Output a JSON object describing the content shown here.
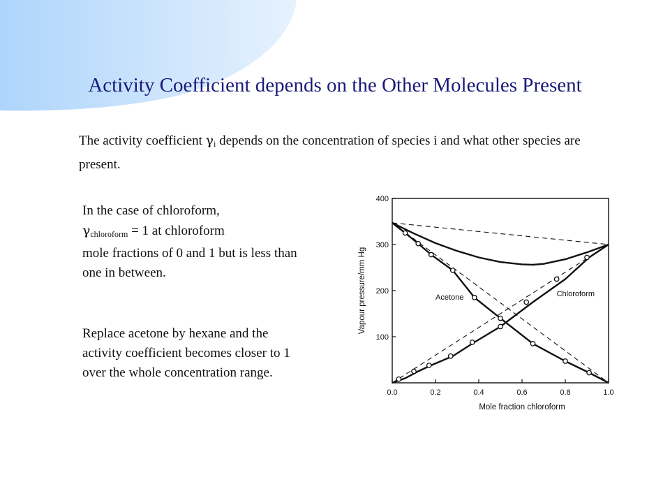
{
  "slide": {
    "title": "Activity Coefficient depends on the Other Molecules Present",
    "intro": {
      "before": "The activity coefficient ",
      "symbol": "γ",
      "subscript": "i",
      "after": " depends on the concentration of species i and what other species are present."
    },
    "para1": {
      "line1": "In the case of chloroform,",
      "symbol": "γ",
      "subscript": "chloroform",
      "after": " = 1 at chloroform",
      "rest": "mole fractions of 0 and 1 but is less than one in between."
    },
    "para2": "Replace acetone by hexane and the activity coefficient becomes closer to 1 over the whole concentration range."
  },
  "chart_data": {
    "type": "line",
    "xlabel": "Mole fraction chloroform",
    "ylabel": "Vapour pressure/mm Hg",
    "xlim": [
      0,
      1
    ],
    "ylim": [
      0,
      400
    ],
    "xticks": [
      "0.0",
      "0.2",
      "0.4",
      "0.6",
      "0.8",
      "1.0"
    ],
    "yticks": [
      "100",
      "200",
      "300",
      "400"
    ],
    "curve_labels": {
      "acetone": "Acetone",
      "chloroform": "Chloroform"
    },
    "series": [
      {
        "key": "total",
        "style": "solid",
        "x": [
          0,
          0.1,
          0.2,
          0.3,
          0.4,
          0.5,
          0.6,
          0.65,
          0.7,
          0.8,
          0.9,
          1.0
        ],
        "values": [
          347,
          324,
          303,
          286,
          272,
          262,
          257,
          256,
          258,
          268,
          283,
          300
        ]
      },
      {
        "key": "acetone",
        "style": "solid",
        "x": [
          0,
          0.06,
          0.12,
          0.18,
          0.28,
          0.38,
          0.5,
          0.65,
          0.8,
          0.91,
          1.0
        ],
        "values": [
          347,
          325,
          302,
          278,
          244,
          185,
          140,
          85,
          47,
          22,
          0
        ]
      },
      {
        "key": "chloroform",
        "style": "solid",
        "x": [
          0,
          0.06,
          0.12,
          0.18,
          0.28,
          0.38,
          0.5,
          0.65,
          0.8,
          0.91,
          1.0
        ],
        "values": [
          0,
          10,
          25,
          38,
          58,
          88,
          122,
          175,
          225,
          272,
          300
        ]
      },
      {
        "key": "raoult-total",
        "style": "dashed",
        "x": [
          0,
          1
        ],
        "values": [
          347,
          300
        ]
      },
      {
        "key": "raoult-acetone",
        "style": "dashed",
        "x": [
          0,
          1
        ],
        "values": [
          347,
          0
        ]
      },
      {
        "key": "raoult-chloroform",
        "style": "dashed",
        "x": [
          0,
          1
        ],
        "values": [
          0,
          300
        ]
      }
    ],
    "markers": {
      "acetone": {
        "x": [
          0.06,
          0.12,
          0.18,
          0.28,
          0.38,
          0.5,
          0.65,
          0.8,
          0.91
        ],
        "values": [
          325,
          302,
          278,
          244,
          185,
          140,
          85,
          47,
          22
        ]
      },
      "chloroform": {
        "x": [
          0.03,
          0.1,
          0.17,
          0.27,
          0.37,
          0.5,
          0.62,
          0.76,
          0.9
        ],
        "values": [
          8,
          25,
          38,
          58,
          88,
          122,
          175,
          225,
          272
        ]
      }
    }
  }
}
